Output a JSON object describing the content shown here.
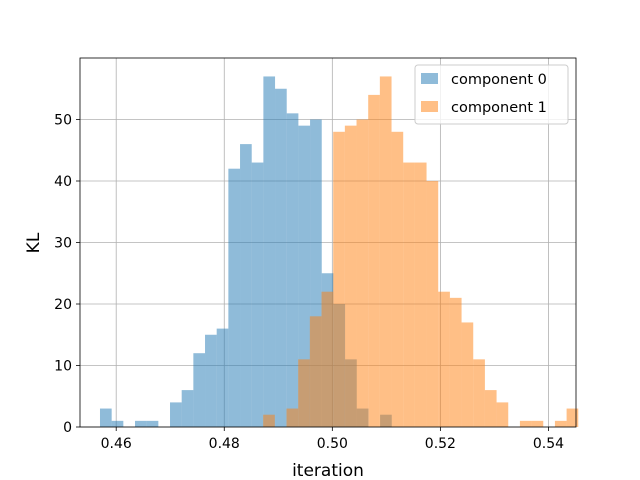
{
  "chart_data": {
    "type": "bar",
    "subtype": "histogram",
    "xlabel": "iteration",
    "ylabel": "KL",
    "xlim": [
      0.4533,
      0.5451
    ],
    "ylim": [
      0,
      60
    ],
    "xticks": [
      0.46,
      0.48,
      0.5,
      0.52,
      0.54
    ],
    "xtick_labels": [
      "0.46",
      "0.48",
      "0.50",
      "0.52",
      "0.54"
    ],
    "yticks": [
      0,
      10,
      20,
      30,
      40,
      50
    ],
    "ytick_labels": [
      "0",
      "10",
      "20",
      "30",
      "40",
      "50"
    ],
    "grid": true,
    "legend_position": "top-right",
    "series": [
      {
        "name": "component 0",
        "color": "#1f77b4",
        "opacity": 0.5,
        "bin_start": 0.457,
        "bin_width": 0.00216,
        "counts": [
          3,
          1,
          0,
          1,
          1,
          0,
          4,
          6,
          12,
          15,
          16,
          42,
          46,
          43,
          57,
          55,
          51,
          49,
          50,
          25,
          20,
          11,
          3,
          0,
          2
        ]
      },
      {
        "name": "component 1",
        "color": "#ff7f0e",
        "opacity": 0.5,
        "bin_start": 0.4872,
        "bin_width": 0.00216,
        "counts": [
          2,
          0,
          3,
          11,
          18,
          22,
          48,
          49,
          50,
          54,
          57,
          48,
          43,
          43,
          40,
          22,
          21,
          17,
          11,
          6,
          4,
          0,
          1,
          1,
          0,
          1,
          3
        ]
      }
    ]
  }
}
